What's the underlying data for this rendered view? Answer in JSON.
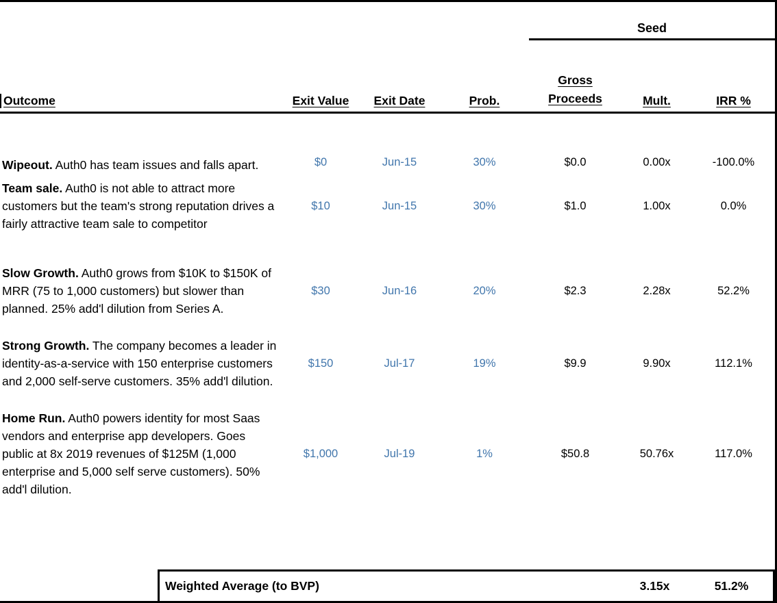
{
  "colors": {
    "accent_blue": "#4176AC",
    "border_black": "#000000"
  },
  "header": {
    "group_label": "Seed",
    "outcome_label": "Outcome",
    "columns": [
      "Exit Value",
      "Exit Date",
      "Prob.",
      "Gross Proceeds",
      "Mult.",
      "IRR %"
    ]
  },
  "rows": [
    {
      "title": "Wipeout.",
      "description": " Auth0 has team issues and falls apart.",
      "exit_value": "$0",
      "exit_date": "Jun-15",
      "prob": "30%",
      "gross_proceeds": "$0.0",
      "mult": "0.00x",
      "irr": "-100.0%"
    },
    {
      "title": "Team sale.",
      "description": " Auth0 is not able to attract more customers but the team's strong reputation drives a fairly attractive team sale to competitor",
      "exit_value": "$10",
      "exit_date": "Jun-15",
      "prob": "30%",
      "gross_proceeds": "$1.0",
      "mult": "1.00x",
      "irr": "0.0%"
    },
    {
      "title": "Slow Growth.",
      "description": " Auth0 grows from $10K to $150K of MRR (75 to 1,000 customers) but slower than planned.  25% add'l dilution from Series A.",
      "exit_value": "$30",
      "exit_date": "Jun-16",
      "prob": "20%",
      "gross_proceeds": "$2.3",
      "mult": "2.28x",
      "irr": "52.2%"
    },
    {
      "title": "Strong Growth.",
      "description": " The company becomes a leader in identity-as-a-service with 150 enterprise customers and 2,000 self-serve customers.  35% add'l dilution.",
      "exit_value": "$150",
      "exit_date": "Jul-17",
      "prob": "19%",
      "gross_proceeds": "$9.9",
      "mult": "9.90x",
      "irr": "112.1%"
    },
    {
      "title": "Home Run.",
      "description": " Auth0 powers identity for most Saas vendors and enterprise app developers. Goes public at 8x 2019 revenues of $125M (1,000 enterprise and 5,000 self serve customers). 50% add'l dilution.",
      "exit_value": "$1,000",
      "exit_date": "Jul-19",
      "prob": "1%",
      "gross_proceeds": "$50.8",
      "mult": "50.76x",
      "irr": "117.0%"
    }
  ],
  "footer": {
    "label": "Weighted Average (to BVP)",
    "mult": "3.15x",
    "irr": "51.2%"
  }
}
